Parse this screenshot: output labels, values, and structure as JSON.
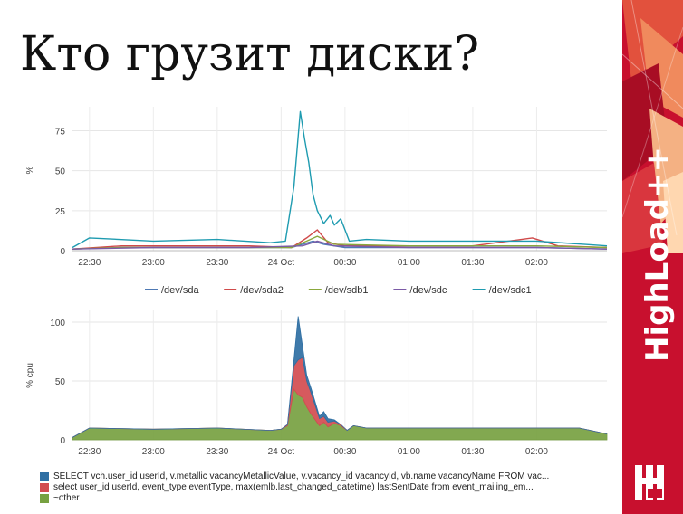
{
  "slide": {
    "title": "Кто грузит диски?",
    "brand": "HighLoad++",
    "accent": "#c8102e"
  },
  "chart_data": [
    {
      "type": "line",
      "title": "",
      "xlabel": "",
      "ylabel": "%",
      "ylim": [
        0,
        90
      ],
      "yticks": [
        0,
        25,
        50,
        75
      ],
      "xlim": [
        "22:22",
        "02:33"
      ],
      "xticks": [
        "22:30",
        "23:00",
        "23:30",
        "24 Oct",
        "00:30",
        "01:00",
        "01:30",
        "02:00"
      ],
      "legend": "bottom",
      "grid": true,
      "series": [
        {
          "name": "/dev/sda",
          "color": "#4e79b4",
          "x": [
            "22:22",
            "22:45",
            "23:15",
            "23:45",
            "00:05",
            "00:10",
            "00:15",
            "00:20",
            "00:30",
            "01:00",
            "01:30",
            "02:00",
            "02:33"
          ],
          "values": [
            1,
            2,
            2,
            2,
            2,
            4,
            6,
            4,
            2,
            2,
            2,
            2,
            1
          ]
        },
        {
          "name": "/dev/sda2",
          "color": "#d04a4a",
          "x": [
            "22:22",
            "22:45",
            "23:15",
            "23:45",
            "00:05",
            "00:12",
            "00:17",
            "00:22",
            "00:30",
            "01:00",
            "01:30",
            "01:58",
            "02:10",
            "02:33"
          ],
          "values": [
            1,
            3,
            3,
            3,
            2,
            8,
            13,
            5,
            3,
            3,
            3,
            8,
            3,
            2
          ]
        },
        {
          "name": "/dev/sdb1",
          "color": "#8aa83c",
          "x": [
            "22:22",
            "22:45",
            "23:15",
            "23:45",
            "00:05",
            "00:12",
            "00:17",
            "00:25",
            "01:00",
            "01:30",
            "02:00",
            "02:33"
          ],
          "values": [
            1,
            2,
            2,
            2,
            2,
            6,
            9,
            4,
            3,
            3,
            3,
            2
          ]
        },
        {
          "name": "/dev/sdc",
          "color": "#7b5aa6",
          "x": [
            "22:22",
            "23:00",
            "23:45",
            "00:10",
            "00:17",
            "00:25",
            "01:00",
            "02:00",
            "02:33"
          ],
          "values": [
            1,
            2,
            2,
            3,
            6,
            3,
            2,
            2,
            1
          ]
        },
        {
          "name": "/dev/sdc1",
          "color": "#1e9bb0",
          "x": [
            "22:22",
            "22:30",
            "23:00",
            "23:30",
            "23:55",
            "00:02",
            "00:06",
            "00:09",
            "00:11",
            "00:13",
            "00:15",
            "00:17",
            "00:20",
            "00:23",
            "00:25",
            "00:28",
            "00:32",
            "00:40",
            "01:00",
            "01:30",
            "02:00",
            "02:33"
          ],
          "values": [
            2,
            8,
            6,
            7,
            5,
            6,
            40,
            87,
            70,
            55,
            35,
            25,
            17,
            22,
            16,
            20,
            6,
            7,
            6,
            6,
            6,
            3
          ]
        }
      ]
    },
    {
      "type": "area",
      "stacked": true,
      "title": "",
      "xlabel": "",
      "ylabel": "% cpu",
      "ylim": [
        0,
        110
      ],
      "yticks": [
        0,
        50,
        100
      ],
      "xlim": [
        "22:22",
        "02:33"
      ],
      "xticks": [
        "22:30",
        "23:00",
        "23:30",
        "24 Oct",
        "00:30",
        "01:00",
        "01:30",
        "02:00"
      ],
      "legend": "bottom-left",
      "grid": true,
      "x": [
        "22:22",
        "22:30",
        "23:00",
        "23:30",
        "23:55",
        "24 Oct",
        "00:03",
        "00:06",
        "00:08",
        "00:10",
        "00:12",
        "00:14",
        "00:16",
        "00:18",
        "00:20",
        "00:22",
        "00:25",
        "00:28",
        "00:31",
        "00:34",
        "00:40",
        "01:00",
        "01:30",
        "02:00",
        "02:20",
        "02:33"
      ],
      "series": [
        {
          "name": "~other",
          "color": "#77a141",
          "values": [
            2,
            10,
            9,
            10,
            8,
            9,
            12,
            43,
            38,
            36,
            28,
            22,
            17,
            12,
            15,
            11,
            14,
            12,
            8,
            12,
            10,
            10,
            10,
            10,
            10,
            5
          ]
        },
        {
          "name": "select user_id userId, event_type eventType, max(emlb.last_changed_datetime) lastSentDate from event_mailing_em...",
          "color": "#d24c50",
          "values": [
            0,
            0,
            0,
            0,
            0,
            0,
            1,
            20,
            30,
            34,
            22,
            18,
            12,
            6,
            5,
            4,
            2,
            1,
            0,
            0,
            0,
            0,
            0,
            0,
            0,
            0
          ]
        },
        {
          "name": "SELECT vch.user_id userId, v.metallic vacancyMetallicValue, v.vacancy_id vacancyId, vb.name vacancyName FROM vac...",
          "color": "#2f6fa3",
          "values": [
            0,
            0,
            0,
            0,
            0,
            0,
            0,
            5,
            37,
            10,
            5,
            4,
            3,
            2,
            4,
            3,
            1,
            0,
            0,
            0,
            0,
            0,
            0,
            0,
            0,
            0
          ]
        }
      ]
    }
  ]
}
